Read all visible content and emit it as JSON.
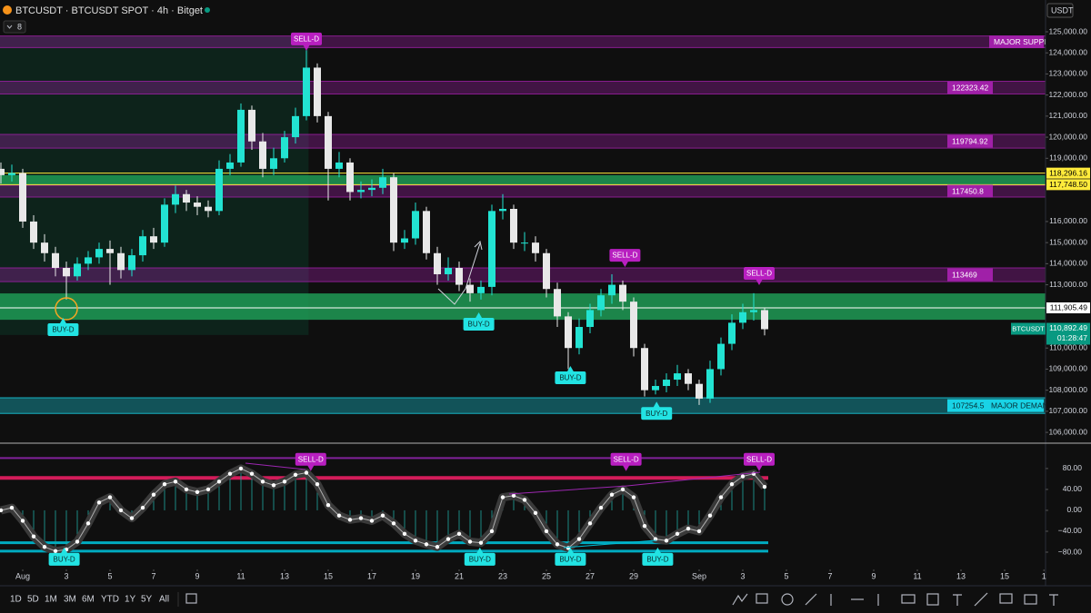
{
  "header": {
    "title": "BTCUSDT · BTCUSDT SPOT · 4h · Bitget",
    "indicators": "8"
  },
  "chart_data": [
    {
      "type": "candlestick",
      "y_label": "USDT",
      "symbol": "BTCUSDT",
      "last_price": {
        "value": 110892.49,
        "label": "110,892.49"
      },
      "countdown": "01:28:47",
      "up_color": "#22e3d2",
      "down_color": "#e8e8e8",
      "x": [
        -1,
        -0.5,
        0,
        0.5,
        1,
        1.5,
        2,
        2.5,
        3,
        3.5,
        4,
        4.5,
        5,
        5.5,
        6,
        6.5,
        7,
        7.5,
        8,
        8.5,
        9,
        9.5,
        10,
        10.5,
        11,
        11.5,
        12,
        12.5,
        13,
        13.5,
        14,
        14.5,
        15,
        15.5,
        16,
        16.5,
        17,
        17.5,
        18,
        18.5,
        19,
        19.5,
        20,
        20.5,
        21,
        21.5,
        22,
        22.5,
        23,
        23.5,
        24,
        24.5,
        25,
        25.5,
        26,
        26.5,
        27,
        27.5,
        28,
        28.5,
        29,
        29.5,
        30,
        30.5,
        31,
        31.5,
        32,
        32.5,
        33,
        33.5,
        34
      ],
      "open": [
        118500,
        118200,
        118300,
        116000,
        115000,
        114500,
        113800,
        113400,
        114000,
        114300,
        114700,
        114500,
        113700,
        114400,
        115300,
        115000,
        116800,
        117300,
        116900,
        116700,
        116500,
        118500,
        118800,
        121300,
        119800,
        118500,
        119000,
        120000,
        121000,
        123300,
        121000,
        118500,
        118800,
        117400,
        117500,
        117600,
        118100,
        115000,
        115200,
        116500,
        114500,
        113500,
        113800,
        113000,
        112600,
        112900,
        116500,
        116600,
        115000,
        115000,
        114500,
        112800,
        111500,
        110000,
        111000,
        111800,
        112500,
        113000,
        112200,
        110000,
        108000,
        108200,
        108500,
        108800,
        108300,
        107600,
        109000,
        110200,
        111200,
        111700,
        111800
      ],
      "high": [
        118800,
        118700,
        118500,
        116300,
        115400,
        114800,
        114100,
        114300,
        114600,
        115000,
        115100,
        114800,
        114700,
        115600,
        115700,
        117100,
        117700,
        117500,
        117200,
        117000,
        118900,
        119200,
        121600,
        121500,
        120200,
        119500,
        120300,
        121400,
        124400,
        123500,
        121200,
        119300,
        119000,
        117900,
        118000,
        118500,
        118300,
        115600,
        116900,
        116700,
        114800,
        114300,
        114100,
        113300,
        113200,
        116800,
        117300,
        116800,
        115500,
        115300,
        114700,
        113100,
        111700,
        111400,
        112100,
        112800,
        113500,
        113200,
        112400,
        110200,
        108500,
        108800,
        109200,
        109000,
        108500,
        109400,
        110500,
        111600,
        112100,
        112600,
        111900
      ],
      "low": [
        117800,
        117900,
        115700,
        114700,
        114100,
        113400,
        112300,
        113200,
        113700,
        114000,
        113000,
        113300,
        113400,
        114100,
        114700,
        114800,
        116400,
        116500,
        116300,
        116200,
        116300,
        118200,
        118600,
        119400,
        118100,
        118200,
        118800,
        119700,
        120800,
        120700,
        117000,
        118100,
        117000,
        117100,
        117200,
        117300,
        114600,
        114700,
        114900,
        114200,
        113000,
        113200,
        112700,
        112200,
        112300,
        112500,
        116100,
        114700,
        114600,
        114100,
        112400,
        111000,
        109000,
        109700,
        110700,
        111500,
        112100,
        111800,
        109600,
        107700,
        107800,
        107900,
        108200,
        108000,
        107300,
        107400,
        108700,
        109900,
        110900,
        111300,
        110600
      ],
      "close": [
        118200,
        118300,
        116000,
        115000,
        114500,
        113800,
        113400,
        114000,
        114300,
        114700,
        114500,
        113700,
        114400,
        115300,
        115000,
        116800,
        117300,
        116900,
        116700,
        116500,
        118500,
        118800,
        121300,
        119800,
        118500,
        119000,
        120000,
        121000,
        123300,
        121000,
        118500,
        118800,
        117400,
        117500,
        117600,
        118100,
        115000,
        115200,
        116500,
        114500,
        113500,
        113800,
        113000,
        112600,
        112900,
        116500,
        116600,
        115000,
        115000,
        114500,
        112800,
        111500,
        110000,
        111000,
        111800,
        112500,
        113000,
        112200,
        110000,
        108000,
        108200,
        108500,
        108800,
        108300,
        107600,
        109000,
        110200,
        111200,
        111700,
        111800,
        110892.49
      ],
      "xlim": [
        -1.0417,
        46.875
      ],
      "xticks": [
        {
          "value": 0,
          "label": "Aug"
        },
        {
          "value": 2,
          "label": "3"
        },
        {
          "value": 4,
          "label": "5"
        },
        {
          "value": 6,
          "label": "7"
        },
        {
          "value": 8,
          "label": "9"
        },
        {
          "value": 10,
          "label": "11"
        },
        {
          "value": 12,
          "label": "13"
        },
        {
          "value": 14,
          "label": "15"
        },
        {
          "value": 16,
          "label": "17"
        },
        {
          "value": 18,
          "label": "19"
        },
        {
          "value": 20,
          "label": "21"
        },
        {
          "value": 22,
          "label": "23"
        },
        {
          "value": 24,
          "label": "25"
        },
        {
          "value": 26,
          "label": "27"
        },
        {
          "value": 28,
          "label": "29"
        },
        {
          "value": 31,
          "label": "Sep"
        },
        {
          "value": 33,
          "label": "3"
        },
        {
          "value": 35,
          "label": "5"
        },
        {
          "value": 37,
          "label": "7"
        },
        {
          "value": 39,
          "label": "9"
        },
        {
          "value": 41,
          "label": "11"
        },
        {
          "value": 43,
          "label": "13"
        },
        {
          "value": 45,
          "label": "15"
        },
        {
          "value": 46.8,
          "label": "1"
        }
      ],
      "ylim": [
        105530,
        125560
      ],
      "yticks": [
        {
          "value": 125000,
          "label": "125,000.00"
        },
        {
          "value": 124000,
          "label": "124,000.00"
        },
        {
          "value": 123000,
          "label": "123,000.00"
        },
        {
          "value": 122000,
          "label": "122,000.00"
        },
        {
          "value": 121000,
          "label": "121,000.00"
        },
        {
          "value": 120000,
          "label": "120,000.00"
        },
        {
          "value": 119000,
          "label": "119,000.00"
        },
        {
          "value": 116000,
          "label": "116,000.00"
        },
        {
          "value": 115000,
          "label": "115,000.00"
        },
        {
          "value": 114000,
          "label": "114,000.00"
        },
        {
          "value": 113000,
          "label": "113,000.00"
        },
        {
          "value": 110000,
          "label": "110,000.00"
        },
        {
          "value": 109000,
          "label": "109,000.00"
        },
        {
          "value": 108000,
          "label": "108,000.00"
        },
        {
          "value": 107000,
          "label": "107,000.00"
        },
        {
          "value": 106000,
          "label": "106,000.00"
        }
      ],
      "range_box": {
        "x": [
          -1.0417,
          13.1
        ],
        "y": [
          110620,
          124800
        ],
        "color": "#0e2b20"
      },
      "zones": [
        {
          "label": "MAJOR SUPPLY",
          "range": [
            124250,
            124800
          ],
          "color": "#a020a8"
        },
        {
          "label": "122323.42",
          "range": [
            122050,
            122650
          ],
          "color": "#a020a8"
        },
        {
          "label": "119794.92",
          "range": [
            119480,
            120130
          ],
          "color": "#a020a8"
        },
        {
          "label": "117450.8",
          "range": [
            117160,
            117720
          ],
          "color": "#a020a8"
        },
        {
          "label": "113469",
          "range": [
            113150,
            113800
          ],
          "color": "#a020a8"
        },
        {
          "label": "107254.5",
          "note": "MAJOR DEMAND",
          "range": [
            106900,
            107640
          ],
          "color": "#19d3e6"
        }
      ],
      "green_zones": [
        {
          "range": [
            117748.5,
            118200
          ],
          "color": "#1e9a55"
        },
        {
          "range": [
            111340,
            112590
          ],
          "color": "#1e9a55"
        }
      ],
      "levels": [
        {
          "value": 118296.16,
          "label": "118,296.16",
          "color": "#ffeb3b"
        },
        {
          "value": 117748.5,
          "label": "117,748.50",
          "color": "#ffeb3b"
        },
        {
          "value": 111905.49,
          "label": "111,905.49",
          "color": "#ffffff"
        }
      ],
      "signals": [
        {
          "text": "SELL-D",
          "x": 13,
          "y": 124100,
          "kind": "sell"
        },
        {
          "text": "BUY-D",
          "x": 1.85,
          "y": 111430,
          "kind": "buy"
        },
        {
          "text": "BUY-D",
          "x": 20.9,
          "y": 111690,
          "kind": "buy"
        },
        {
          "text": "BUY-D",
          "x": 25.1,
          "y": 109150,
          "kind": "buy"
        },
        {
          "text": "SELL-D",
          "x": 27.6,
          "y": 113840,
          "kind": "sell"
        },
        {
          "text": "BUY-D",
          "x": 29.05,
          "y": 107460,
          "kind": "buy"
        },
        {
          "text": "SELL-D",
          "x": 33.75,
          "y": 112980,
          "kind": "sell"
        }
      ]
    },
    {
      "type": "line",
      "color": "#ffffff",
      "x": [
        -1,
        -0.5,
        0,
        0.5,
        1,
        1.5,
        2,
        2.5,
        3,
        3.5,
        4,
        4.5,
        5,
        5.5,
        6,
        6.5,
        7,
        7.5,
        8,
        8.5,
        9,
        9.5,
        10,
        10.5,
        11,
        11.5,
        12,
        12.5,
        13,
        13.5,
        14,
        14.5,
        15,
        15.5,
        16,
        16.5,
        17,
        17.5,
        18,
        18.5,
        19,
        19.5,
        20,
        20.5,
        21,
        21.5,
        22,
        22.5,
        23,
        23.5,
        24,
        24.5,
        25,
        25.5,
        26,
        26.5,
        27,
        27.5,
        28,
        28.5,
        29,
        29.5,
        30,
        30.5,
        31,
        31.5,
        32,
        32.5,
        33,
        33.5,
        34
      ],
      "values": [
        0,
        5,
        -20,
        -50,
        -70,
        -78,
        -75,
        -60,
        -25,
        15,
        25,
        0,
        -15,
        5,
        30,
        50,
        55,
        40,
        35,
        40,
        55,
        70,
        80,
        70,
        55,
        48,
        55,
        68,
        72,
        50,
        10,
        -10,
        -18,
        -15,
        -20,
        -10,
        -25,
        -45,
        -58,
        -65,
        -70,
        -55,
        -45,
        -60,
        -62,
        -40,
        25,
        28,
        20,
        -5,
        -40,
        -65,
        -72,
        -55,
        -25,
        5,
        30,
        40,
        25,
        -30,
        -55,
        -58,
        -45,
        -35,
        -40,
        -10,
        25,
        50,
        65,
        70,
        45
      ],
      "xlim": [
        -1.0417,
        46.875
      ],
      "ylim": [
        -113,
        125
      ],
      "yticks": [
        {
          "value": 80,
          "label": "80.00"
        },
        {
          "value": 40,
          "label": "40.00"
        },
        {
          "value": 0,
          "label": "0.00"
        },
        {
          "value": -40,
          "label": "−40.00"
        },
        {
          "value": -80,
          "label": "−80.00"
        }
      ],
      "levels": [
        {
          "value": 100,
          "color": "#8e24aa"
        },
        {
          "value": 62,
          "color": "#e91e63"
        },
        {
          "value": -62,
          "color": "#00bcd4"
        },
        {
          "value": -78,
          "color": "#00bcd4"
        }
      ],
      "signals": [
        {
          "text": "SELL-D",
          "x": 13.2,
          "y": 75,
          "kind": "sell"
        },
        {
          "text": "SELL-D",
          "x": 27.65,
          "y": 75,
          "kind": "sell"
        },
        {
          "text": "SELL-D",
          "x": 33.75,
          "y": 75,
          "kind": "sell"
        },
        {
          "text": "BUY-D",
          "x": 1.9,
          "y": -71,
          "kind": "buy"
        },
        {
          "text": "BUY-D",
          "x": 20.95,
          "y": -71,
          "kind": "buy"
        },
        {
          "text": "BUY-D",
          "x": 25.1,
          "y": -71,
          "kind": "buy"
        },
        {
          "text": "BUY-D",
          "x": 29.1,
          "y": -71,
          "kind": "buy"
        }
      ]
    }
  ],
  "toolbar": {
    "ranges": [
      "1D",
      "5D",
      "1M",
      "3M",
      "6M",
      "YTD",
      "1Y",
      "5Y",
      "All"
    ]
  }
}
